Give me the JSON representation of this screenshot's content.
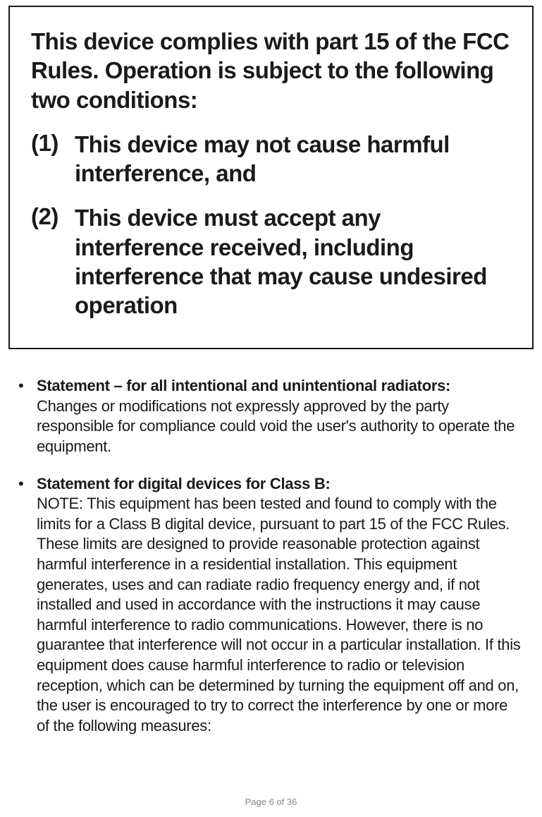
{
  "compliance_box": {
    "intro": "This device complies with part 15 of the FCC Rules. Operation is subject to the following two conditions:",
    "items": [
      {
        "number": "(1)",
        "text": "This device may not cause harmful interference, and"
      },
      {
        "number": "(2)",
        "text": "This device must accept any interference received, including interference that may cause undesired operation"
      }
    ]
  },
  "bullets": [
    {
      "heading": "Statement – for all intentional and unintentional radiators:",
      "body": "Changes or modifications not expressly approved by the party responsible for compliance could void the user's authority to operate the equipment."
    },
    {
      "heading": "Statement for digital devices for Class B:",
      "body": "NOTE: This equipment has been tested and found to comply with the limits for a Class B digital device, pursuant to part 15 of the FCC Rules. These limits are designed to provide reasonable protection against harmful interference in a residential installation. This equipment generates, uses and can radiate radio frequency energy and, if not installed and used in accordance with the instructions it may cause harmful interference to radio communications. However, there is no guarantee that interference will not occur in a particular installation. If this equipment does cause harmful interference to radio or television reception, which can be determined by turning the equipment off and on, the user is encouraged to try to correct the interference by one or more of the following measures:"
    }
  ],
  "footer": {
    "page_label": "Page 6 of 36"
  },
  "colors": {
    "text": "#1a1a1a",
    "border": "#1a1a1a",
    "footer": "#888888",
    "background": "#ffffff"
  },
  "typography": {
    "box_heading_pt": 33,
    "bullet_heading_pt": 22,
    "body_pt": 22,
    "footer_pt": 13,
    "font_family": "Helvetica Condensed"
  }
}
